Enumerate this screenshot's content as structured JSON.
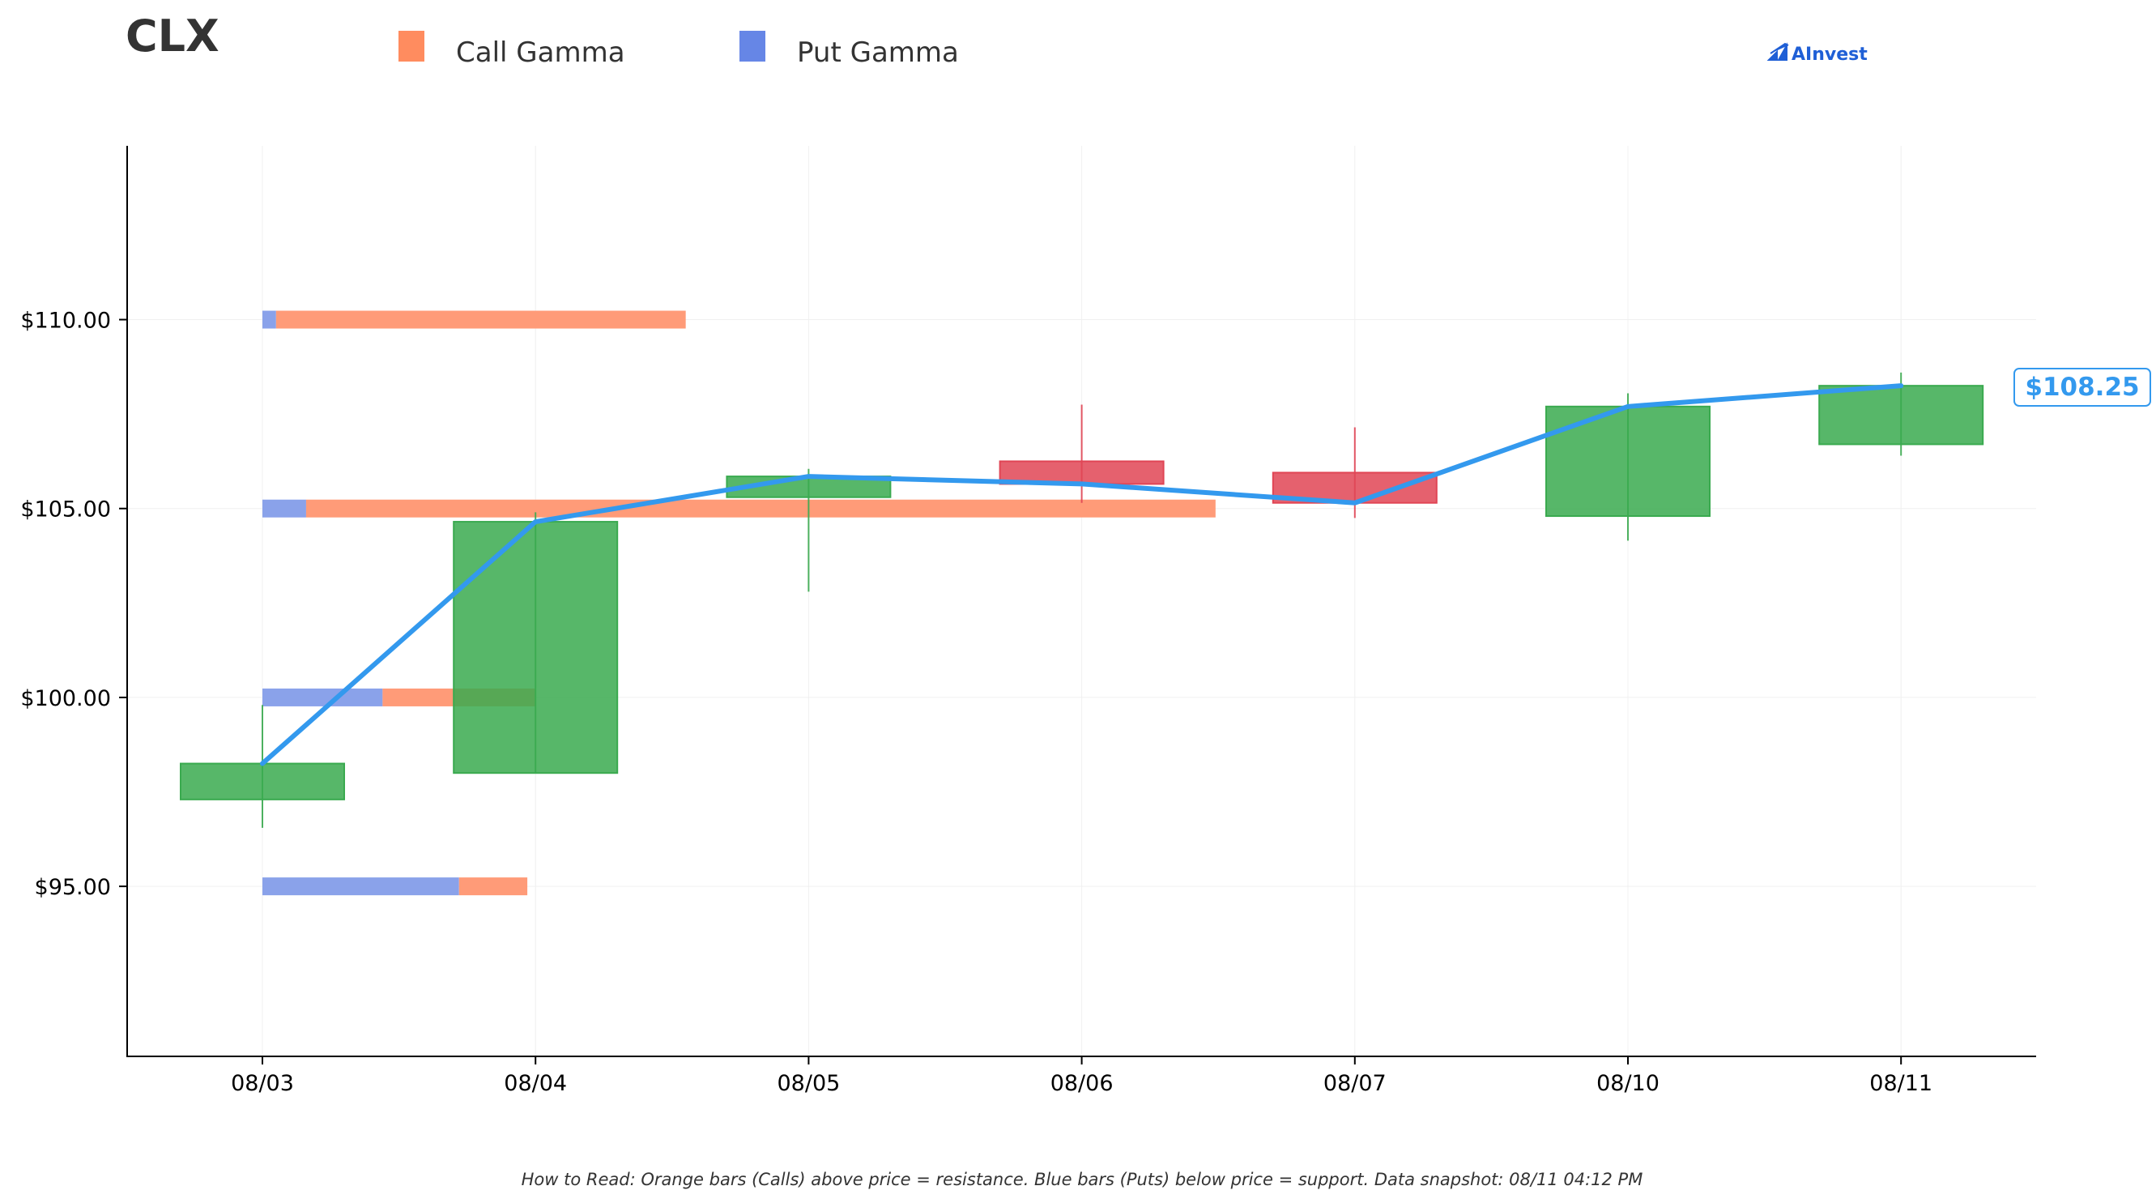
{
  "header": {
    "ticker": "CLX",
    "brand": "AInvest"
  },
  "legend": {
    "items": [
      {
        "label": "Call Gamma",
        "color": "#ff8c5f"
      },
      {
        "label": "Put Gamma",
        "color": "#6686e6"
      }
    ]
  },
  "footnote": "How to Read: Orange bars (Calls) above price = resistance. Blue bars (Puts) below price = support. Data snapshot: 08/11 04:12 PM",
  "price_label": "$108.25",
  "chart_data": {
    "type": "candlestick",
    "categories": [
      "08/03",
      "08/04",
      "08/05",
      "08/06",
      "08/07",
      "08/10",
      "08/11"
    ],
    "ylim": [
      90.5,
      114.6
    ],
    "yticks": [
      95,
      100,
      105,
      110
    ],
    "ytick_labels": [
      "$95.00",
      "$100.00",
      "$105.00",
      "$110.00"
    ],
    "grid": true,
    "colors": {
      "up": "#3aaa4f",
      "down": "#e04555",
      "close_line": "#3399ee",
      "call": "#ff9b78",
      "put": "#8aa2ea"
    },
    "candles": [
      {
        "date": "08/03",
        "open": 97.3,
        "close": 98.25,
        "high": 99.8,
        "low": 96.55
      },
      {
        "date": "08/04",
        "open": 98.0,
        "close": 104.65,
        "high": 104.9,
        "low": 98.0
      },
      {
        "date": "08/05",
        "open": 105.3,
        "close": 105.85,
        "high": 106.05,
        "low": 102.8
      },
      {
        "date": "08/06",
        "open": 106.25,
        "close": 105.65,
        "high": 107.75,
        "low": 105.15
      },
      {
        "date": "08/07",
        "open": 105.95,
        "close": 105.15,
        "high": 107.15,
        "low": 104.75
      },
      {
        "date": "08/10",
        "open": 104.8,
        "close": 107.7,
        "high": 108.05,
        "low": 104.15
      },
      {
        "date": "08/11",
        "open": 106.7,
        "close": 108.25,
        "high": 108.6,
        "low": 106.4
      }
    ],
    "close_line": [
      98.25,
      104.65,
      105.85,
      105.65,
      105.15,
      107.7,
      108.25
    ],
    "gamma_levels": [
      {
        "strike": 110,
        "put": 0.05,
        "call": 1.5
      },
      {
        "strike": 105,
        "put": 0.16,
        "call": 3.33
      },
      {
        "strike": 100,
        "put": 0.44,
        "call": 0.56
      },
      {
        "strike": 95,
        "put": 0.72,
        "call": 0.25
      }
    ]
  }
}
